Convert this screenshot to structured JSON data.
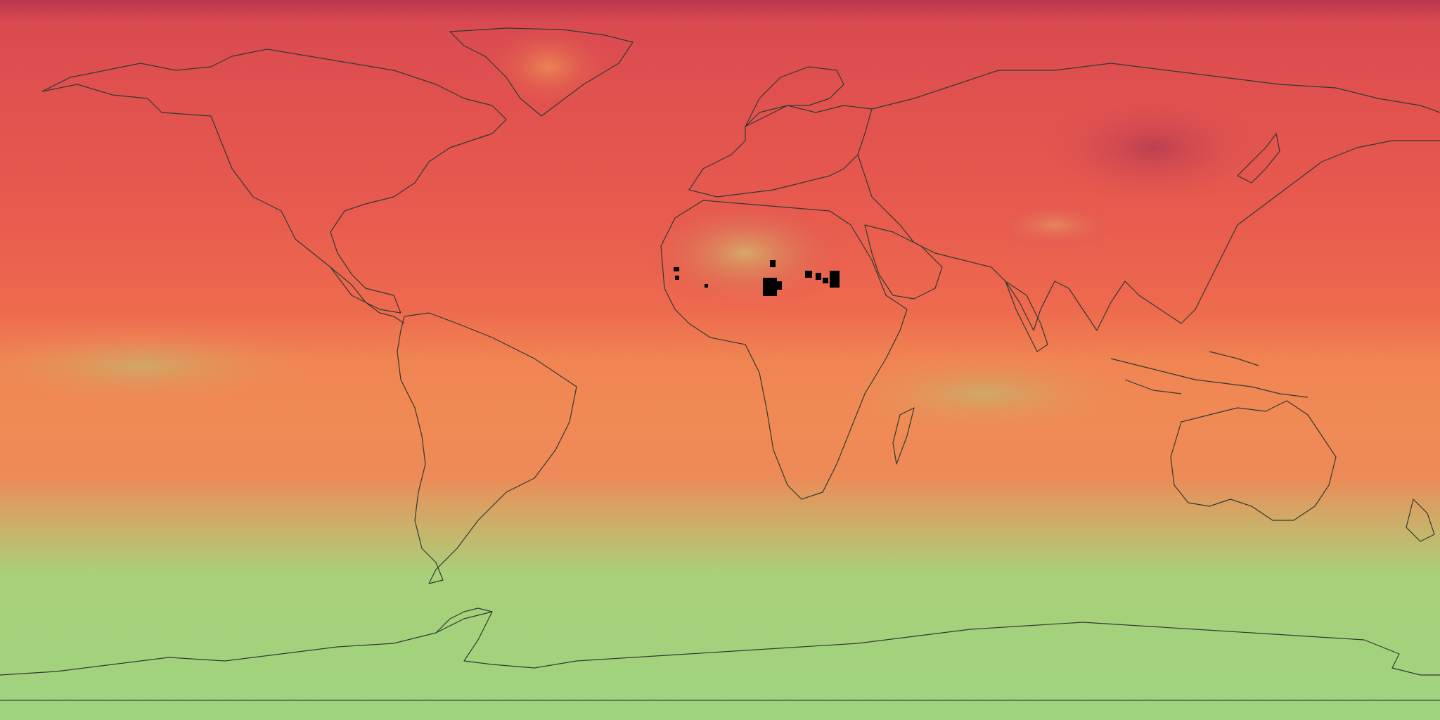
{
  "map": {
    "projection": "equirectangular",
    "basemap": "coastlines",
    "lat_range": [
      -90,
      90
    ],
    "lon_range": [
      -180,
      180
    ],
    "colors": {
      "high": "#c7384f",
      "mid_high": "#e0504f",
      "mid": "#ec6b4e",
      "mid_low": "#f08a55",
      "low": "#a8d27a",
      "lowest": "#9fd37e",
      "nodata": "#000000",
      "coastline": "#2e3a33"
    },
    "nodata_region": "Sahara"
  }
}
